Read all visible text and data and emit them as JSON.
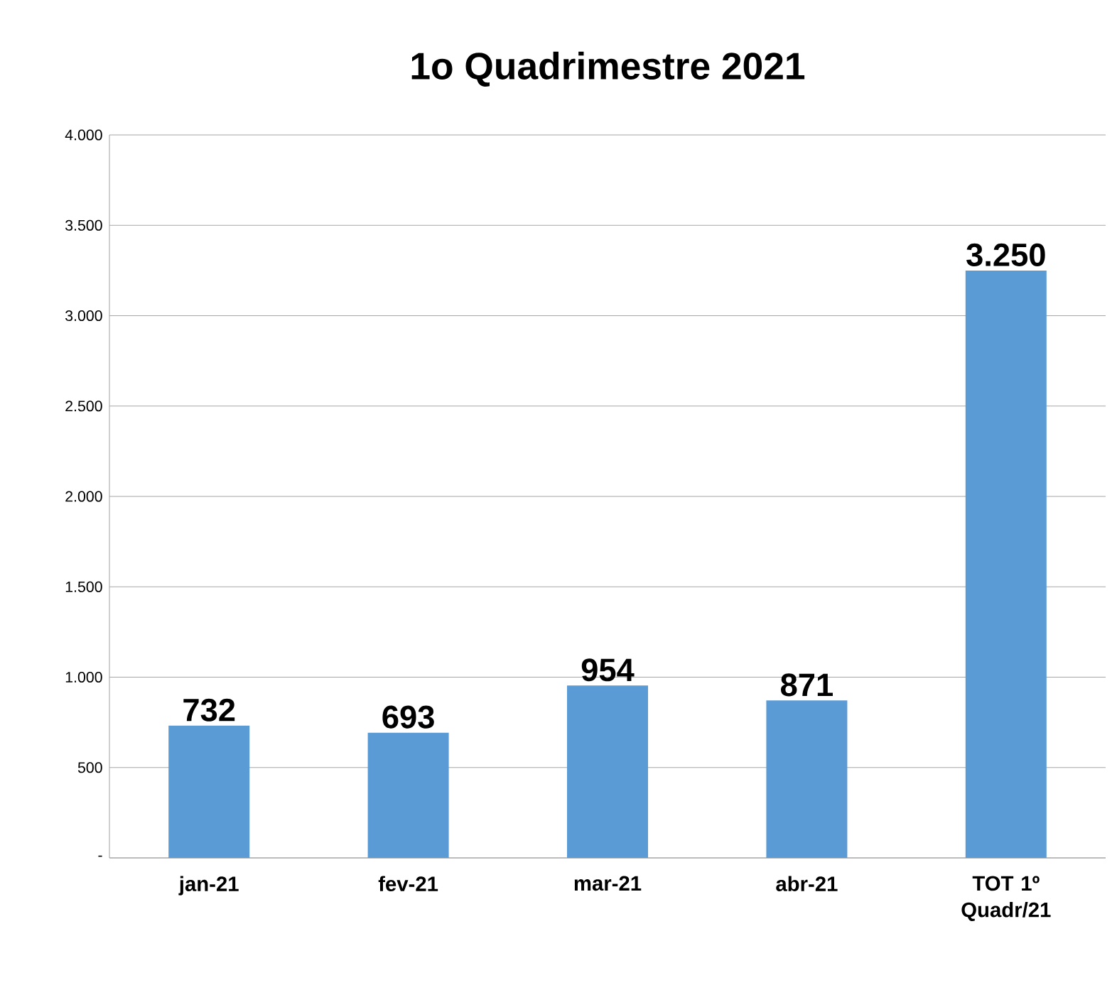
{
  "chart_data": {
    "type": "bar",
    "title": "1o Quadrimestre 2021",
    "categories": [
      "jan-21",
      "fev-21",
      "mar-21",
      "abr-21",
      "TOT 1º Quadr/21"
    ],
    "values": [
      732,
      693,
      954,
      871,
      3250
    ],
    "value_labels": [
      "732",
      "693",
      "954",
      "871",
      "3.250"
    ],
    "color": "#5b9bd5",
    "ylim": [
      0,
      4000
    ],
    "yticks": [
      {
        "value": 0,
        "label": "-"
      },
      {
        "value": 500,
        "label": "500"
      },
      {
        "value": 1000,
        "label": "1.000"
      },
      {
        "value": 1500,
        "label": "1.500"
      },
      {
        "value": 2000,
        "label": "2.000"
      },
      {
        "value": 2500,
        "label": "2.500"
      },
      {
        "value": 3000,
        "label": "3.000"
      },
      {
        "value": 3500,
        "label": "3.500"
      },
      {
        "value": 4000,
        "label": "4.000"
      }
    ],
    "grid": "y"
  }
}
